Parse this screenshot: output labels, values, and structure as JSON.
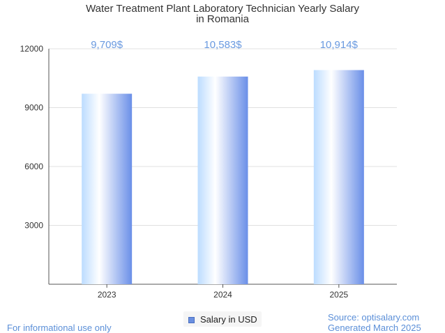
{
  "chart_data": {
    "type": "bar",
    "title_line1": "Water Treatment Plant Laboratory Technician Yearly Salary",
    "title_line2": "in Romania",
    "categories": [
      "2023",
      "2024",
      "2025"
    ],
    "series": [
      {
        "name": "Salary in USD",
        "values": [
          9709,
          10583,
          10914
        ]
      }
    ],
    "data_labels": [
      "9,709$",
      "10,583$",
      "10,914$"
    ],
    "ylim": [
      0,
      12000
    ],
    "yticks": [
      3000,
      6000,
      9000,
      12000
    ],
    "grid": true,
    "legend_position": "bottom-center",
    "bar_color_light": "#ffffff",
    "bar_color_mid": "#bcdcff",
    "bar_color_dark": "#6a8fe8",
    "label_color": "#6a9ae0"
  },
  "footer": {
    "left": "For informational use only",
    "source": "Source: optisalary.com",
    "generated": "Generated March 2025"
  }
}
